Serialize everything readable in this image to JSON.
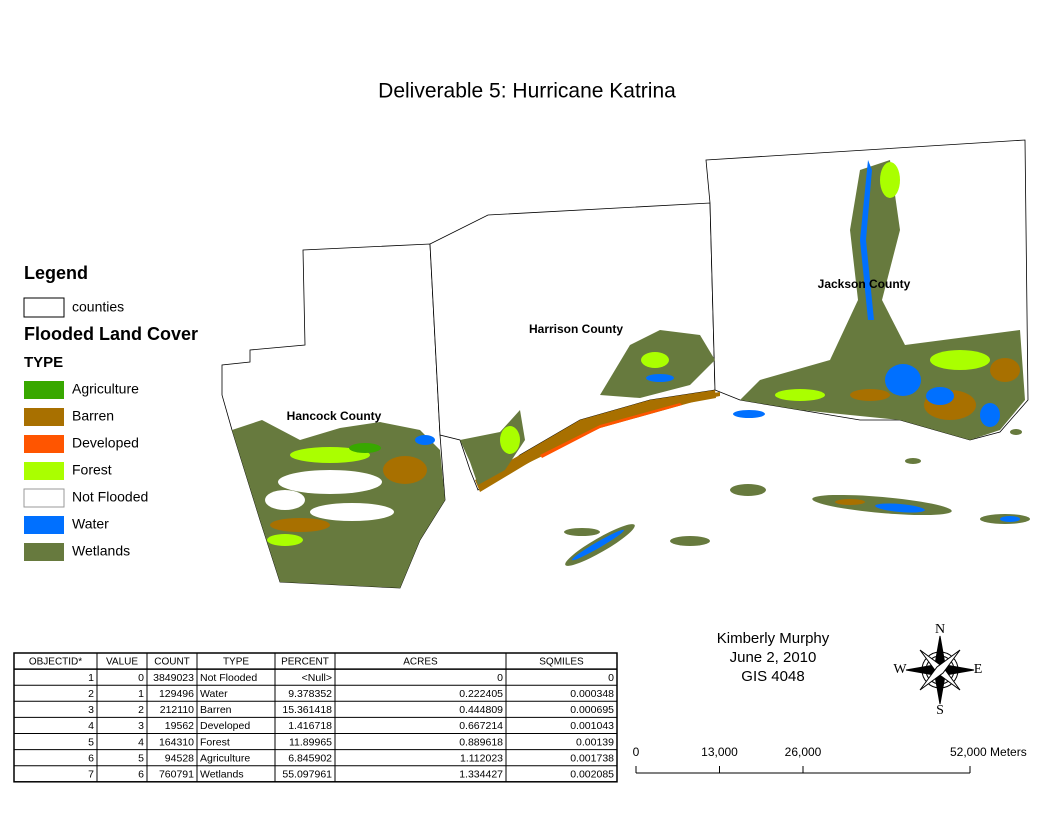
{
  "title": "Deliverable 5: Hurricane Katrina",
  "legend": {
    "title": "Legend",
    "counties_label": "counties",
    "layer_title": "Flooded Land Cover",
    "field": "TYPE",
    "items": [
      {
        "label": "Agriculture",
        "color": "#38a800"
      },
      {
        "label": "Barren",
        "color": "#a87000"
      },
      {
        "label": "Developed",
        "color": "#ff5500"
      },
      {
        "label": "Forest",
        "color": "#aaff00"
      },
      {
        "label": "Not Flooded",
        "color": "#ffffff"
      },
      {
        "label": "Water",
        "color": "#0070ff"
      },
      {
        "label": "Wetlands",
        "color": "#677a3e"
      }
    ]
  },
  "county_labels": [
    "Hancock County",
    "Harrison County",
    "Jackson County"
  ],
  "table": {
    "columns": [
      "OBJECTID*",
      "VALUE",
      "COUNT",
      "TYPE",
      "PERCENT",
      "ACRES",
      "SQMILES"
    ],
    "rows": [
      [
        "1",
        "0",
        "3849023",
        "Not Flooded",
        "<Null>",
        "0",
        "0"
      ],
      [
        "2",
        "1",
        "129496",
        "Water",
        "9.378352",
        "0.222405",
        "0.000348"
      ],
      [
        "3",
        "2",
        "212110",
        "Barren",
        "15.361418",
        "0.444809",
        "0.000695"
      ],
      [
        "4",
        "3",
        "19562",
        "Developed",
        "1.416718",
        "0.667214",
        "0.001043"
      ],
      [
        "5",
        "4",
        "164310",
        "Forest",
        "11.89965",
        "0.889618",
        "0.00139"
      ],
      [
        "6",
        "5",
        "94528",
        "Agriculture",
        "6.845902",
        "1.112023",
        "0.001738"
      ],
      [
        "7",
        "6",
        "760791",
        "Wetlands",
        "55.097961",
        "1.334427",
        "0.002085"
      ]
    ]
  },
  "author": {
    "name": "Kimberly Murphy",
    "date": "June 2, 2010",
    "course": "GIS 4048"
  },
  "north_arrow": {
    "n": "N",
    "s": "S",
    "e": "E",
    "w": "W"
  },
  "scale_bar": {
    "xlim": [
      0,
      52000
    ],
    "ticks": [
      {
        "value": 0,
        "label": "0"
      },
      {
        "value": 13000,
        "label": "13,000"
      },
      {
        "value": 26000,
        "label": "26,000"
      },
      {
        "value": 52000,
        "label": "52,000 Meters"
      }
    ]
  }
}
